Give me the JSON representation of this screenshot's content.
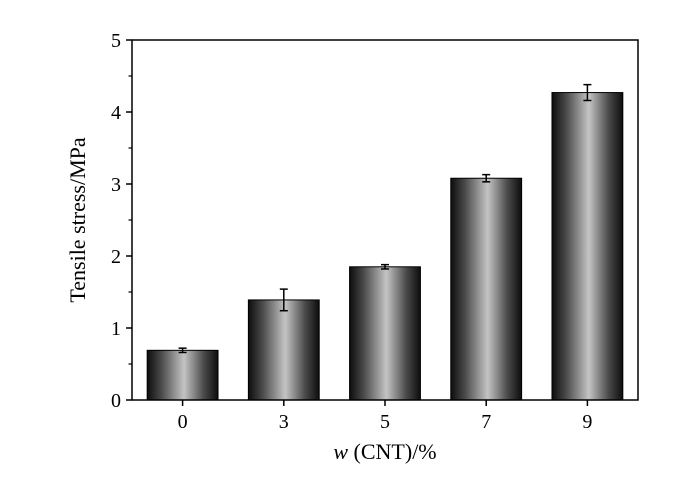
{
  "chart_data": {
    "type": "bar",
    "categories": [
      "0",
      "3",
      "5",
      "7",
      "9"
    ],
    "values": [
      0.69,
      1.39,
      1.85,
      3.08,
      4.27
    ],
    "errors": [
      0.03,
      0.15,
      0.03,
      0.05,
      0.11
    ],
    "xlabel_italic": "w",
    "xlabel_rest": " (CNT)/%",
    "ylabel": "Tensile stress/MPa",
    "ylim": [
      0,
      5
    ],
    "yticks": [
      "0",
      "1",
      "2",
      "3",
      "4",
      "5"
    ],
    "grid": false,
    "bar_style": "dark-gray-cylindrical-gradient"
  }
}
